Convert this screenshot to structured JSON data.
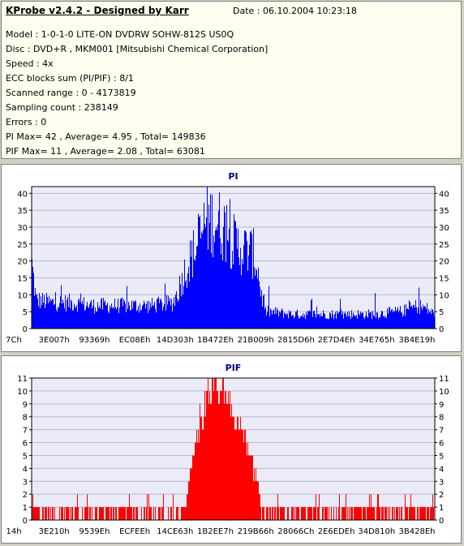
{
  "header": {
    "title": "KProbe v2.4.2 - Designed by Karr",
    "date": "Date : 06.10.2004 10:23:18"
  },
  "info_lines": [
    "Model : 1-0-1-0 LITE-ON DVDRW SOHW-812S  US0Q",
    "Disc : DVD+R , MKM001 [Mitsubishi Chemical Corporation]",
    "Speed : 4x",
    "ECC blocks sum (PI/PIF) : 8/1",
    "Scanned range : 0 - 4173819",
    "Sampling count : 238149",
    "Errors : 0",
    "PI Max= 42 , Average= 4.95 , Total= 149836",
    "PIF Max= 11 , Average= 2.08 , Total= 63081"
  ],
  "colors": {
    "pi": "#0000ff",
    "pif": "#ff0000",
    "plot_bg": "#ebebf8",
    "grid": "#b8b8d0",
    "title": "#000080"
  },
  "chart_data": [
    {
      "type": "bar",
      "title": "PI",
      "ylim": [
        0,
        42
      ],
      "yticks": [
        0,
        5,
        10,
        15,
        20,
        25,
        30,
        35,
        40
      ],
      "xticks": [
        "7Ch",
        "3E007h",
        "93369h",
        "EC08Eh",
        "14D303h",
        "1B472Eh",
        "21B009h",
        "2815D6h",
        "2E7D4Eh",
        "34E765h",
        "3B4E19h"
      ],
      "grid": true,
      "profile": [
        [
          0,
          22
        ],
        [
          0.01,
          10
        ],
        [
          0.05,
          9
        ],
        [
          0.1,
          9
        ],
        [
          0.15,
          8
        ],
        [
          0.2,
          8
        ],
        [
          0.25,
          8
        ],
        [
          0.3,
          8
        ],
        [
          0.35,
          9
        ],
        [
          0.36,
          12
        ],
        [
          0.37,
          16
        ],
        [
          0.38,
          20
        ],
        [
          0.4,
          26
        ],
        [
          0.42,
          32
        ],
        [
          0.43,
          37
        ],
        [
          0.45,
          38
        ],
        [
          0.47,
          36
        ],
        [
          0.49,
          33
        ],
        [
          0.5,
          30
        ],
        [
          0.52,
          28
        ],
        [
          0.54,
          27
        ],
        [
          0.55,
          26
        ],
        [
          0.56,
          22
        ],
        [
          0.57,
          12
        ],
        [
          0.58,
          6
        ],
        [
          0.65,
          5
        ],
        [
          0.75,
          5
        ],
        [
          0.85,
          5
        ],
        [
          0.92,
          6
        ],
        [
          0.96,
          8
        ],
        [
          0.98,
          7
        ],
        [
          1.0,
          5
        ]
      ]
    },
    {
      "type": "bar",
      "title": "PIF",
      "ylim": [
        0,
        11
      ],
      "yticks": [
        0,
        1,
        2,
        3,
        4,
        5,
        6,
        7,
        8,
        9,
        10,
        11
      ],
      "xticks": [
        "14h",
        "3E210h",
        "9539Eh",
        "ECFEEh",
        "14CE63h",
        "1B2EE7h",
        "219B66h",
        "28066Ch",
        "2E6EDEh",
        "34D810h",
        "3B428Eh"
      ],
      "grid": true,
      "profile": [
        [
          0,
          0
        ],
        [
          0.38,
          0
        ],
        [
          0.385,
          2
        ],
        [
          0.4,
          5
        ],
        [
          0.41,
          7
        ],
        [
          0.42,
          8
        ],
        [
          0.43,
          9
        ],
        [
          0.45,
          10
        ],
        [
          0.47,
          10
        ],
        [
          0.49,
          9
        ],
        [
          0.5,
          8
        ],
        [
          0.52,
          7
        ],
        [
          0.54,
          5
        ],
        [
          0.56,
          3
        ],
        [
          0.57,
          1
        ],
        [
          0.6,
          1
        ],
        [
          0.7,
          1
        ],
        [
          0.8,
          1
        ],
        [
          0.9,
          1
        ],
        [
          1.0,
          1
        ]
      ]
    }
  ]
}
